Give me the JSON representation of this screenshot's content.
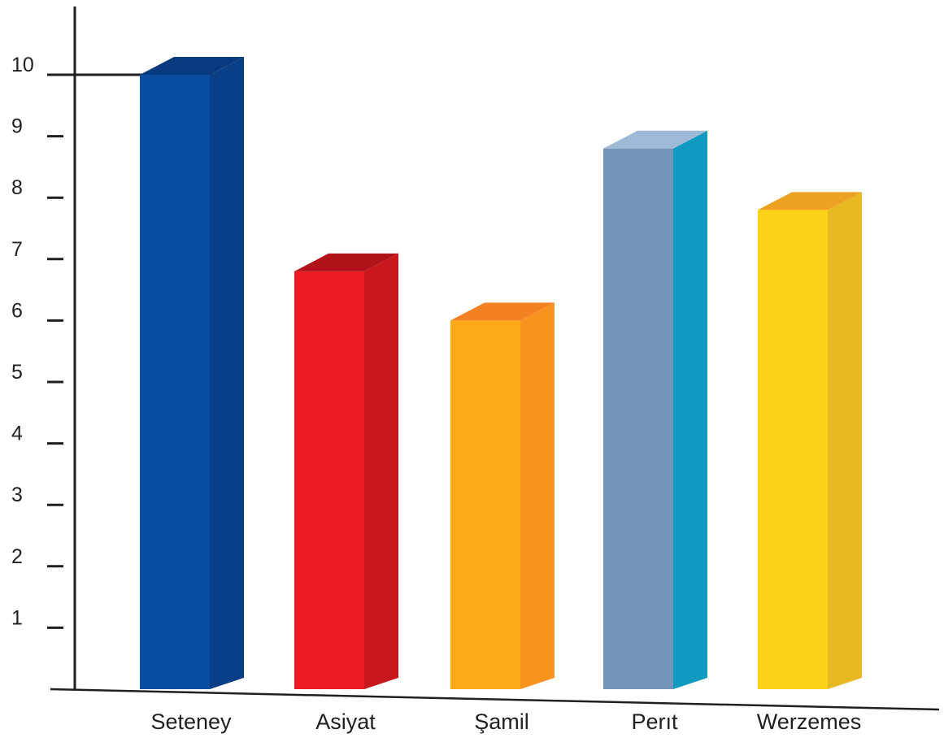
{
  "chart_data": {
    "type": "bar",
    "title": "",
    "xlabel": "",
    "ylabel": "",
    "categories": [
      "Seteney",
      "Asiyat",
      "Şamil",
      "Perıt",
      "Werzemes"
    ],
    "values": [
      10,
      6.8,
      6.0,
      8.8,
      7.8
    ],
    "ylim": [
      0,
      10
    ],
    "yticks": [
      "1",
      "2",
      "3",
      "4",
      "5",
      "6",
      "7",
      "8",
      "9",
      "10"
    ],
    "grid": false,
    "legend": "none",
    "style": "3d-columns",
    "colors": [
      {
        "front": "#0a4ea2",
        "side": "#083f87",
        "top": "#0a3a7e"
      },
      {
        "front": "#ec1c24",
        "side": "#c8171d",
        "top": "#b0141a"
      },
      {
        "front": "#fbab18",
        "side": "#f7931e",
        "top": "#f58220"
      },
      {
        "front": "#7595b8",
        "side": "#109ac0",
        "top": "#9fbad6"
      },
      {
        "front": "#fdd31a",
        "side": "#e9b923",
        "top": "#eda221"
      }
    ]
  }
}
